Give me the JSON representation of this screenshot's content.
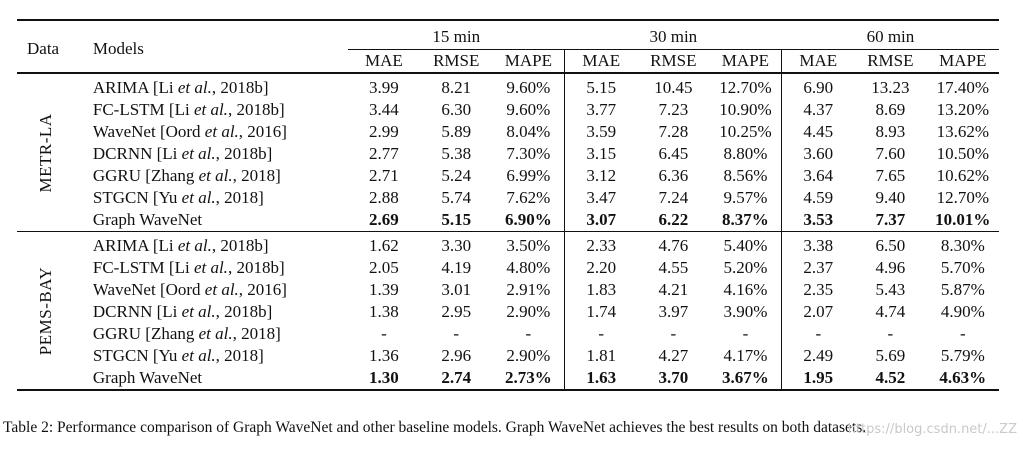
{
  "header": {
    "data_label": "Data",
    "models_label": "Models",
    "horizons": [
      "15 min",
      "30 min",
      "60 min"
    ],
    "metrics": [
      "MAE",
      "RMSE",
      "MAPE"
    ]
  },
  "sections": [
    {
      "dataset": "METR-LA",
      "rows": [
        {
          "model_pre": "ARIMA [Li ",
          "model_ital": "et al.",
          "model_post": ", 2018b]",
          "values": [
            "3.99",
            "8.21",
            "9.60%",
            "5.15",
            "10.45",
            "12.70%",
            "6.90",
            "13.23",
            "17.40%"
          ],
          "bold": false
        },
        {
          "model_pre": "FC-LSTM [Li ",
          "model_ital": "et al.",
          "model_post": ", 2018b]",
          "values": [
            "3.44",
            "6.30",
            "9.60%",
            "3.77",
            "7.23",
            "10.90%",
            "4.37",
            "8.69",
            "13.20%"
          ],
          "bold": false
        },
        {
          "model_pre": "WaveNet [Oord ",
          "model_ital": "et al.",
          "model_post": ", 2016]",
          "values": [
            "2.99",
            "5.89",
            "8.04%",
            "3.59",
            "7.28",
            "10.25%",
            "4.45",
            "8.93",
            "13.62%"
          ],
          "bold": false
        },
        {
          "model_pre": "DCRNN [Li ",
          "model_ital": "et al.",
          "model_post": ", 2018b]",
          "values": [
            "2.77",
            "5.38",
            "7.30%",
            "3.15",
            "6.45",
            "8.80%",
            "3.60",
            "7.60",
            "10.50%"
          ],
          "bold": false
        },
        {
          "model_pre": "GGRU [Zhang ",
          "model_ital": "et al.",
          "model_post": ", 2018]",
          "values": [
            "2.71",
            "5.24",
            "6.99%",
            "3.12",
            "6.36",
            "8.56%",
            "3.64",
            "7.65",
            "10.62%"
          ],
          "bold": false
        },
        {
          "model_pre": "STGCN [Yu ",
          "model_ital": "et al.",
          "model_post": ", 2018]",
          "values": [
            "2.88",
            "5.74",
            "7.62%",
            "3.47",
            "7.24",
            "9.57%",
            "4.59",
            "9.40",
            "12.70%"
          ],
          "bold": false
        },
        {
          "model_pre": "Graph WaveNet",
          "model_ital": "",
          "model_post": "",
          "values": [
            "2.69",
            "5.15",
            "6.90%",
            "3.07",
            "6.22",
            "8.37%",
            "3.53",
            "7.37",
            "10.01%"
          ],
          "bold": true
        }
      ]
    },
    {
      "dataset": "PEMS-BAY",
      "rows": [
        {
          "model_pre": "ARIMA [Li ",
          "model_ital": "et al.",
          "model_post": ", 2018b]",
          "values": [
            "1.62",
            "3.30",
            "3.50%",
            "2.33",
            "4.76",
            "5.40%",
            "3.38",
            "6.50",
            "8.30%"
          ],
          "bold": false
        },
        {
          "model_pre": "FC-LSTM [Li ",
          "model_ital": "et al.",
          "model_post": ", 2018b]",
          "values": [
            "2.05",
            "4.19",
            "4.80%",
            "2.20",
            "4.55",
            "5.20%",
            "2.37",
            "4.96",
            "5.70%"
          ],
          "bold": false
        },
        {
          "model_pre": "WaveNet [Oord ",
          "model_ital": "et al.",
          "model_post": ", 2016]",
          "values": [
            "1.39",
            "3.01",
            "2.91%",
            "1.83",
            "4.21",
            "4.16%",
            "2.35",
            "5.43",
            "5.87%"
          ],
          "bold": false
        },
        {
          "model_pre": "DCRNN [Li ",
          "model_ital": "et al.",
          "model_post": ", 2018b]",
          "values": [
            "1.38",
            "2.95",
            "2.90%",
            "1.74",
            "3.97",
            "3.90%",
            "2.07",
            "4.74",
            "4.90%"
          ],
          "bold": false
        },
        {
          "model_pre": "GGRU [Zhang ",
          "model_ital": "et al.",
          "model_post": ", 2018]",
          "values": [
            "-",
            "-",
            "-",
            "-",
            "-",
            "-",
            "-",
            "-",
            "-"
          ],
          "bold": false
        },
        {
          "model_pre": "STGCN [Yu ",
          "model_ital": "et al.",
          "model_post": ", 2018]",
          "values": [
            "1.36",
            "2.96",
            "2.90%",
            "1.81",
            "4.27",
            "4.17%",
            "2.49",
            "5.69",
            "5.79%"
          ],
          "bold": false
        },
        {
          "model_pre": "Graph WaveNet",
          "model_ital": "",
          "model_post": "",
          "values": [
            "1.30",
            "2.74",
            "2.73%",
            "1.63",
            "3.70",
            "3.67%",
            "1.95",
            "4.52",
            "4.63%"
          ],
          "bold": true
        }
      ]
    }
  ],
  "caption": "Table 2: Performance comparison of Graph WaveNet and other baseline models. Graph WaveNet achieves the best results on both datasets.",
  "watermark": "https://blog.csdn.net/...ZZ"
}
